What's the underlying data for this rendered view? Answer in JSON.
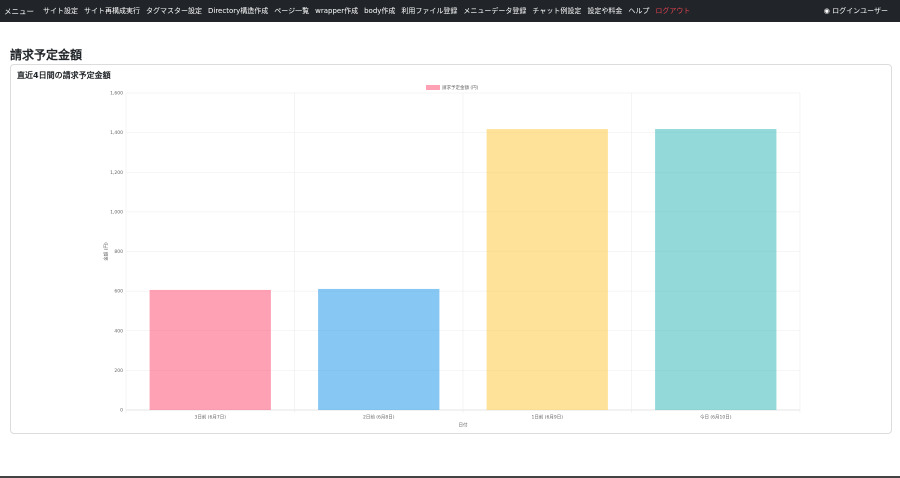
{
  "navbar": {
    "brand": "メニュー",
    "links": [
      "サイト設定",
      "サイト再構成実行",
      "タグマスター設定",
      "Directory構造作成",
      "ページ一覧",
      "wrapper作成",
      "body作成",
      "利用ファイル登録",
      "メニューデータ登録",
      "チャット例設定",
      "設定や料金",
      "ヘルプ"
    ],
    "logout": "ログアウト",
    "user": "ログインユーザー"
  },
  "page_title": "請求予定金額",
  "card_title": "直近4日間の請求予定金額",
  "chart_data": {
    "type": "bar",
    "categories": [
      "3日前 (6月7日)",
      "2日前 (6月8日)",
      "1日前 (6月9日)",
      "今日 (6月10日)"
    ],
    "series": [
      {
        "name": "請求予定金額 (円)",
        "values": [
          606,
          611,
          1418,
          1418
        ],
        "colors": [
          "rgba(255,99,132,0.6)",
          "rgba(54,162,235,0.6)",
          "rgba(255,206,86,0.6)",
          "rgba(75,192,192,0.6)"
        ]
      }
    ],
    "ylabel": "金額 (円)",
    "xlabel": "日付",
    "ylim": [
      0,
      1600
    ],
    "yticks": [
      0,
      200,
      400,
      600,
      800,
      {
        "value": 1000,
        "label": "1,000"
      },
      {
        "value": 1200,
        "label": "1,200"
      },
      {
        "value": 1400,
        "label": "1,400"
      },
      {
        "value": 1600,
        "label": "1,600"
      }
    ],
    "grid": true
  }
}
